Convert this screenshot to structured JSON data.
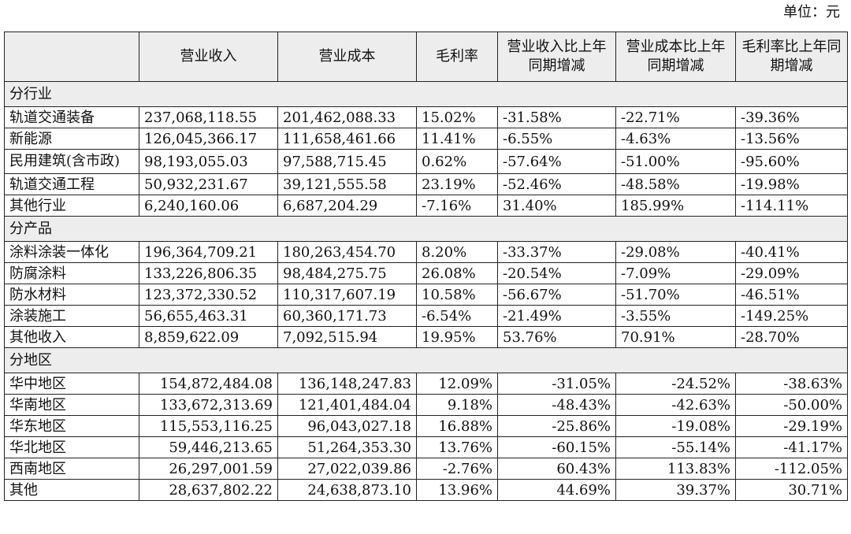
{
  "unit_label": "单位：元",
  "header": {
    "blank": "",
    "revenue": "营业收入",
    "cost": "营业成本",
    "gross_margin": "毛利率",
    "revenue_yoy": "营业收入比上年同期增减",
    "cost_yoy": "营业成本比上年同期增减",
    "margin_yoy": "毛利率比上年同期增减"
  },
  "sections": [
    {
      "title": "分行业",
      "align": "left",
      "rows": [
        {
          "label": "轨道交通装备",
          "revenue": "237,068,118.55",
          "cost": "201,462,088.33",
          "margin": "15.02%",
          "revenue_yoy": "-31.58%",
          "cost_yoy": "-22.71%",
          "margin_yoy": "-39.36%"
        },
        {
          "label": "新能源",
          "revenue": "126,045,366.17",
          "cost": "111,658,461.66",
          "margin": "11.41%",
          "revenue_yoy": "-6.55%",
          "cost_yoy": "-4.63%",
          "margin_yoy": "-13.56%"
        },
        {
          "label": "民用建筑(含市政)",
          "revenue": "98,193,055.03",
          "cost": "97,588,715.45",
          "margin": "0.62%",
          "revenue_yoy": "-57.64%",
          "cost_yoy": "-51.00%",
          "margin_yoy": "-95.60%"
        },
        {
          "label": "轨道交通工程",
          "revenue": "50,932,231.67",
          "cost": "39,121,555.58",
          "margin": "23.19%",
          "revenue_yoy": "-52.46%",
          "cost_yoy": "-48.58%",
          "margin_yoy": "-19.98%"
        },
        {
          "label": "其他行业",
          "revenue": "6,240,160.06",
          "cost": "6,687,204.29",
          "margin": "-7.16%",
          "revenue_yoy": "31.40%",
          "cost_yoy": "185.99%",
          "margin_yoy": "-114.11%"
        }
      ]
    },
    {
      "title": "分产品",
      "align": "left",
      "rows": [
        {
          "label": "涂料涂装一体化",
          "revenue": "196,364,709.21",
          "cost": "180,263,454.70",
          "margin": "8.20%",
          "revenue_yoy": "-33.37%",
          "cost_yoy": "-29.08%",
          "margin_yoy": "-40.41%"
        },
        {
          "label": "防腐涂料",
          "revenue": "133,226,806.35",
          "cost": "98,484,275.75",
          "margin": "26.08%",
          "revenue_yoy": "-20.54%",
          "cost_yoy": "-7.09%",
          "margin_yoy": "-29.09%"
        },
        {
          "label": "防水材料",
          "revenue": "123,372,330.52",
          "cost": "110,317,607.19",
          "margin": "10.58%",
          "revenue_yoy": "-56.67%",
          "cost_yoy": "-51.70%",
          "margin_yoy": "-46.51%"
        },
        {
          "label": "涂装施工",
          "revenue": "56,655,463.31",
          "cost": "60,360,171.73",
          "margin": "-6.54%",
          "revenue_yoy": "-21.49%",
          "cost_yoy": "-3.55%",
          "margin_yoy": "-149.25%"
        },
        {
          "label": "其他收入",
          "revenue": "8,859,622.09",
          "cost": "7,092,515.94",
          "margin": "19.95%",
          "revenue_yoy": "53.76%",
          "cost_yoy": "70.91%",
          "margin_yoy": "-28.70%"
        }
      ]
    },
    {
      "title": "分地区",
      "align": "right",
      "rows": [
        {
          "label": "华中地区",
          "revenue": "154,872,484.08",
          "cost": "136,148,247.83",
          "margin": "12.09%",
          "revenue_yoy": "-31.05%",
          "cost_yoy": "-24.52%",
          "margin_yoy": "-38.63%"
        },
        {
          "label": "华南地区",
          "revenue": "133,672,313.69",
          "cost": "121,401,484.04",
          "margin": "9.18%",
          "revenue_yoy": "-48.43%",
          "cost_yoy": "-42.63%",
          "margin_yoy": "-50.00%"
        },
        {
          "label": "华东地区",
          "revenue": "115,553,116.25",
          "cost": "96,043,027.18",
          "margin": "16.88%",
          "revenue_yoy": "-25.86%",
          "cost_yoy": "-19.08%",
          "margin_yoy": "-29.19%"
        },
        {
          "label": "华北地区",
          "revenue": "59,446,213.65",
          "cost": "51,264,353.30",
          "margin": "13.76%",
          "revenue_yoy": "-60.15%",
          "cost_yoy": "-55.14%",
          "margin_yoy": "-41.17%"
        },
        {
          "label": "西南地区",
          "revenue": "26,297,001.59",
          "cost": "27,022,039.86",
          "margin": "-2.76%",
          "revenue_yoy": "60.43%",
          "cost_yoy": "113.83%",
          "margin_yoy": "-112.05%"
        },
        {
          "label": "其他",
          "revenue": "28,637,802.22",
          "cost": "24,638,873.10",
          "margin": "13.96%",
          "revenue_yoy": "44.69%",
          "cost_yoy": "39.37%",
          "margin_yoy": "30.71%"
        }
      ]
    }
  ]
}
